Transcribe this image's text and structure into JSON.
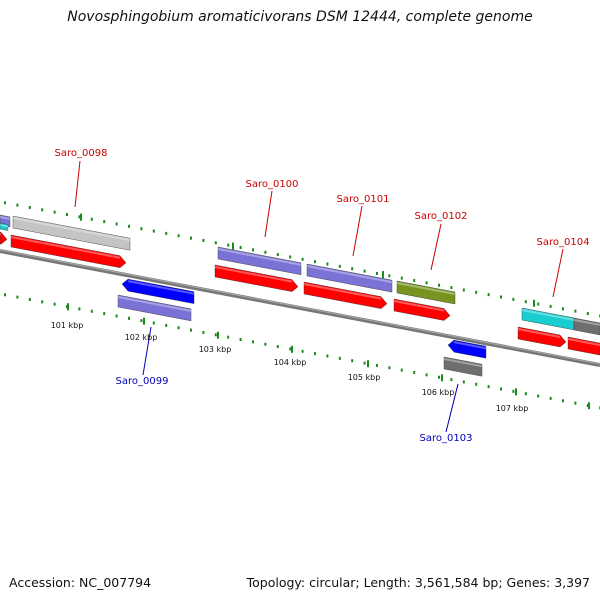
{
  "title": "Novosphingobium aromaticivorans DSM 12444, complete genome",
  "footer": {
    "accession": "Accession: NC_007794",
    "summary": "Topology: circular; Length: 3,561,584 bp; Genes: 3,397"
  },
  "colors": {
    "cds": "#ff0000",
    "purple": "#7b72d6",
    "blue": "#0000ff",
    "cyan": "#19cdd0",
    "olive": "#76941f",
    "gray_light": "#c4c4c4",
    "gray_dark": "#6e6e6e",
    "tick": "#1a8a1a",
    "backbone": "#777777",
    "label_forward": "#cc0000",
    "label_reverse": "#0000bb"
  },
  "ticks": [
    "101 kbp",
    "102 kbp",
    "103 kbp",
    "104 kbp",
    "105 kbp",
    "106 kbp",
    "107 kbp"
  ],
  "genes": [
    {
      "name": "Saro_0098",
      "strand": "forward"
    },
    {
      "name": "Saro_0099",
      "strand": "reverse"
    },
    {
      "name": "Saro_0100",
      "strand": "forward"
    },
    {
      "name": "Saro_0101",
      "strand": "forward"
    },
    {
      "name": "Saro_0102",
      "strand": "forward"
    },
    {
      "name": "Saro_0103",
      "strand": "reverse"
    },
    {
      "name": "Saro_0104",
      "strand": "forward"
    }
  ]
}
